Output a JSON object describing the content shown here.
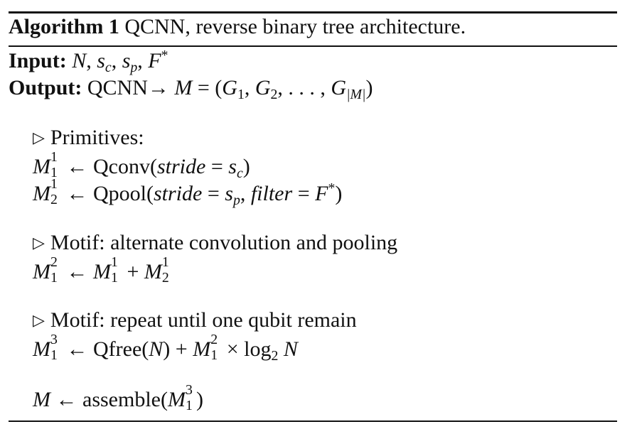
{
  "algorithm": {
    "label": "Algorithm 1",
    "title": "QCNN, reverse binary tree architecture."
  },
  "io": {
    "input_label": "Input:",
    "input_vars": [
      "N",
      "s",
      "c",
      "s",
      "p",
      "F",
      "*"
    ],
    "output_label": "Output:",
    "output_text": "QCNN→",
    "output_model": "M",
    "output_gates": [
      "G",
      "1",
      "G",
      "2",
      "G",
      "|M|"
    ]
  },
  "sections": {
    "primitives_comment": "Primitives:",
    "motif1_comment": "Motif: alternate convolution and pooling",
    "motif2_comment": "Motif: repeat until one qubit remain"
  },
  "statements": {
    "qconv": "Qconv",
    "qpool": "Qpool",
    "stride": "stride",
    "filter": "filter",
    "qfree": "Qfree",
    "log": "log",
    "log_base": "2",
    "assemble": "assemble"
  }
}
